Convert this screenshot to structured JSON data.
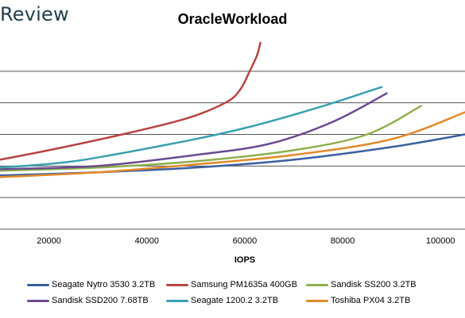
{
  "header": {
    "brand": "Review"
  },
  "chart_data": {
    "type": "line",
    "title": "OracleWorkload",
    "xlabel": "IOPS",
    "ylabel": "",
    "xlim": [
      10000,
      105000
    ],
    "x_ticks": [
      20000,
      40000,
      60000,
      80000,
      100000
    ],
    "x_tick_labels": [
      "20000",
      "40000",
      "60000",
      "80000",
      "100000"
    ],
    "ylim": [
      0,
      6
    ],
    "y_gridlines": [
      1,
      2,
      3,
      4,
      5
    ],
    "grid": "horizontal",
    "legend_position": "bottom",
    "series": [
      {
        "name": "Seagate Nytro 3530 3.2TB",
        "color": "#3a5fa0",
        "x": [
          10000,
          30000,
          50000,
          70000,
          90000,
          105000
        ],
        "y": [
          1.7,
          1.8,
          1.95,
          2.2,
          2.6,
          3.0
        ]
      },
      {
        "name": "Samsung PM1635a 400GB",
        "color": "#b54441",
        "x": [
          10000,
          20000,
          35000,
          48000,
          56000,
          59000,
          61000,
          62500,
          63200
        ],
        "y": [
          2.2,
          2.5,
          3.0,
          3.5,
          4.0,
          4.4,
          5.0,
          5.5,
          5.9
        ]
      },
      {
        "name": "Sandisk SS200 3.2TB",
        "color": "#8db04c",
        "x": [
          10000,
          30000,
          50000,
          70000,
          85000,
          96000
        ],
        "y": [
          1.85,
          1.95,
          2.15,
          2.5,
          3.0,
          3.9
        ]
      },
      {
        "name": "Sandisk SSD200 7.68TB",
        "color": "#6b4a8e",
        "x": [
          10000,
          30000,
          50000,
          65000,
          78000,
          89000
        ],
        "y": [
          1.9,
          2.0,
          2.35,
          2.7,
          3.4,
          4.3
        ]
      },
      {
        "name": "Seagate 1200.2 3.2TB",
        "color": "#3aa0b0",
        "x": [
          10000,
          25000,
          45000,
          60000,
          75000,
          86000,
          88000
        ],
        "y": [
          1.95,
          2.15,
          2.7,
          3.2,
          3.85,
          4.4,
          4.5
        ]
      },
      {
        "name": "Toshiba PX04 3.2TB",
        "color": "#e3892b",
        "x": [
          10000,
          30000,
          50000,
          70000,
          90000,
          105000
        ],
        "y": [
          1.65,
          1.8,
          2.05,
          2.35,
          2.85,
          3.7
        ]
      }
    ]
  }
}
